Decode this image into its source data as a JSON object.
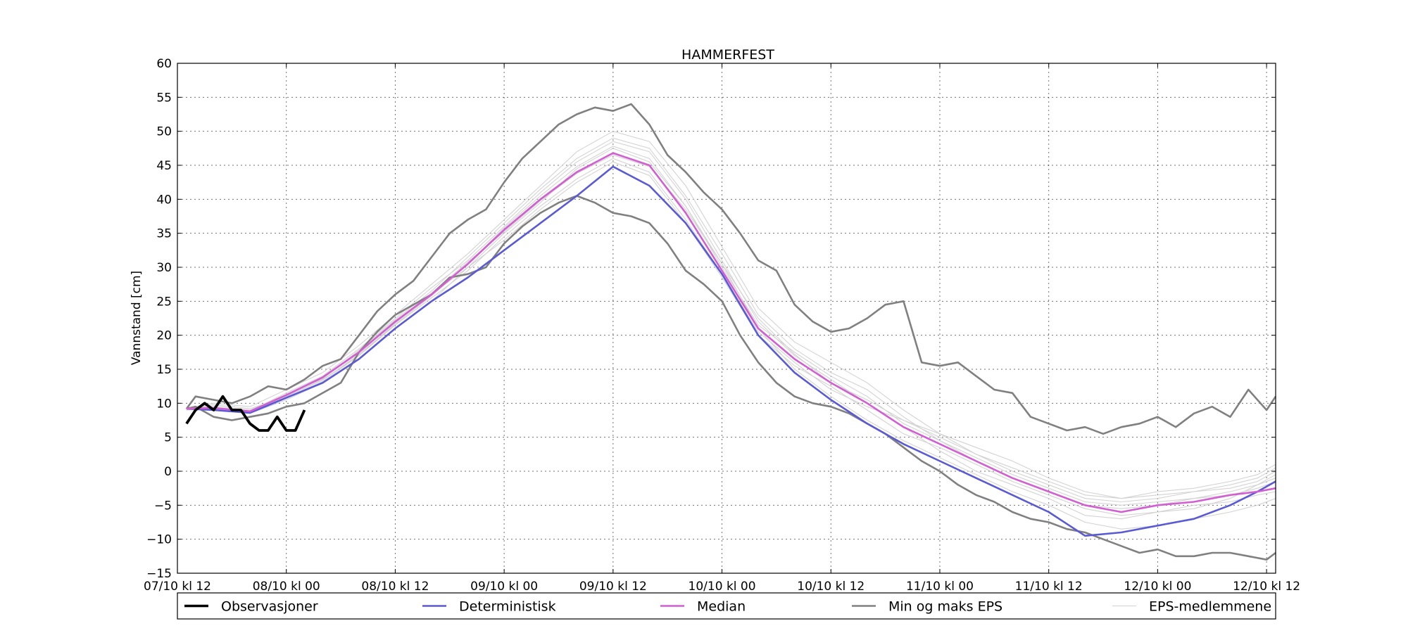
{
  "chart_data": {
    "type": "line",
    "title": "HAMMERFEST",
    "xlabel": "",
    "ylabel": "Vannstand [cm]",
    "xlim_hours": [
      0,
      121
    ],
    "ylim": [
      -15,
      60
    ],
    "grid": true,
    "legend_placement": "bottom",
    "yticks": [
      -15,
      -10,
      -5,
      0,
      5,
      10,
      15,
      20,
      25,
      30,
      35,
      40,
      45,
      50,
      55,
      60
    ],
    "ytick_labels": [
      "−15",
      "−10",
      "−5",
      "0",
      "5",
      "10",
      "15",
      "20",
      "25",
      "30",
      "35",
      "40",
      "45",
      "50",
      "55",
      "60"
    ],
    "xticks_hours": [
      0,
      12,
      24,
      36,
      48,
      60,
      72,
      84,
      96,
      108,
      120
    ],
    "xtick_labels": [
      "07/10 kl 12",
      "08/10 kl 00",
      "08/10 kl 12",
      "09/10 kl 00",
      "09/10 kl 12",
      "10/10 kl 00",
      "10/10 kl 12",
      "11/10 kl 00",
      "11/10 kl 12",
      "12/10 kl 00",
      "12/10 kl 12"
    ],
    "series": [
      {
        "name": "Observasjoner",
        "color": "#000000",
        "x_hours": [
          1,
          2,
          3,
          4,
          5,
          6,
          7,
          8,
          9,
          10,
          11,
          12,
          13,
          14
        ],
        "values": [
          7,
          9,
          10,
          9,
          11,
          9,
          9,
          7,
          6,
          6,
          8,
          6,
          6,
          9
        ]
      },
      {
        "name": "Deterministisk",
        "color": "#5a5ad4",
        "x_hours": [
          1,
          4,
          8,
          12,
          16,
          20,
          24,
          28,
          32,
          36,
          40,
          44,
          48,
          52,
          56,
          60,
          64,
          68,
          72,
          76,
          80,
          84,
          88,
          92,
          96,
          100,
          104,
          108,
          112,
          116,
          119,
          121
        ],
        "values": [
          9.2,
          9.0,
          8.6,
          10.8,
          13.0,
          16.5,
          21.0,
          25.0,
          28.5,
          32.5,
          36.5,
          40.5,
          44.8,
          42.0,
          36.5,
          29.0,
          20.0,
          14.5,
          10.5,
          7.0,
          4.0,
          1.5,
          -1.0,
          -3.5,
          -6.0,
          -9.5,
          -9.0,
          -8.0,
          -7.0,
          -5.0,
          -3.0,
          -1.5
        ]
      },
      {
        "name": "Median",
        "color": "#d25fd2",
        "x_hours": [
          1,
          4,
          8,
          12,
          16,
          20,
          24,
          28,
          32,
          36,
          40,
          44,
          48,
          52,
          56,
          60,
          64,
          68,
          72,
          76,
          80,
          84,
          88,
          92,
          96,
          100,
          104,
          108,
          112,
          116,
          119,
          121
        ],
        "values": [
          9.2,
          9.3,
          8.8,
          11.2,
          13.8,
          17.5,
          22.0,
          26.0,
          30.5,
          35.5,
          40.0,
          44.0,
          46.8,
          45.0,
          38.0,
          29.5,
          21.0,
          16.5,
          13.0,
          10.0,
          6.5,
          4.0,
          1.5,
          -1.0,
          -3.0,
          -5.0,
          -6.0,
          -5.0,
          -4.5,
          -3.5,
          -3.0,
          -2.5
        ]
      },
      {
        "name": "Min og maks EPS",
        "color": "#808080",
        "x_hours": [
          1,
          2,
          4,
          6,
          8,
          10,
          12,
          14,
          16,
          18,
          20,
          22,
          24,
          26,
          28,
          30,
          32,
          34,
          36,
          38,
          40,
          42,
          44,
          46,
          48,
          50,
          52,
          54,
          56,
          58,
          60,
          62,
          64,
          66,
          68,
          70,
          72,
          74,
          76,
          78,
          80,
          82,
          84,
          86,
          88,
          90,
          92,
          94,
          96,
          98,
          100,
          102,
          104,
          106,
          108,
          110,
          112,
          114,
          116,
          118,
          120,
          121
        ],
        "values": [
          9.2,
          11.0,
          10.5,
          10.0,
          11.0,
          12.5,
          12.0,
          13.5,
          15.5,
          16.5,
          20.0,
          23.5,
          26.0,
          28.0,
          31.5,
          35.0,
          37.0,
          38.5,
          42.5,
          46.0,
          48.5,
          51.0,
          52.5,
          53.5,
          53.0,
          54.0,
          51.0,
          46.5,
          44.0,
          41.0,
          38.5,
          35.0,
          31.0,
          29.5,
          24.5,
          22.0,
          20.5,
          21.0,
          22.5,
          24.5,
          25.0,
          16.0,
          15.5,
          16.0,
          14.0,
          12.0,
          11.5,
          8.0,
          7.0,
          6.0,
          6.5,
          5.5,
          6.5,
          7.0,
          8.0,
          6.5,
          8.5,
          9.5,
          8.0,
          12.0,
          9.0,
          11.0
        ]
      },
      {
        "name": "Min og maks EPS",
        "color": "#808080",
        "x_hours": [
          1,
          2,
          4,
          6,
          8,
          10,
          12,
          14,
          16,
          18,
          20,
          22,
          24,
          26,
          28,
          30,
          32,
          34,
          36,
          38,
          40,
          42,
          44,
          46,
          48,
          50,
          52,
          54,
          56,
          58,
          60,
          62,
          64,
          66,
          68,
          70,
          72,
          74,
          76,
          78,
          80,
          82,
          84,
          86,
          88,
          90,
          92,
          94,
          96,
          98,
          100,
          102,
          104,
          106,
          108,
          110,
          112,
          114,
          116,
          118,
          120,
          121
        ],
        "values": [
          9.2,
          9.5,
          8.0,
          7.5,
          8.0,
          8.5,
          9.5,
          10.0,
          11.5,
          13.0,
          17.5,
          20.5,
          23.0,
          24.5,
          26.0,
          28.5,
          29.0,
          30.0,
          33.5,
          36.0,
          38.0,
          39.5,
          40.5,
          39.5,
          38.0,
          37.5,
          36.5,
          33.5,
          29.5,
          27.5,
          25.0,
          20.0,
          16.0,
          13.0,
          11.0,
          10.0,
          9.5,
          8.5,
          7.0,
          5.5,
          3.5,
          1.5,
          0.0,
          -2.0,
          -3.5,
          -4.5,
          -6.0,
          -7.0,
          -7.5,
          -8.5,
          -9.0,
          -10.0,
          -11.0,
          -12.0,
          -11.5,
          -12.5,
          -12.5,
          -12.0,
          -12.0,
          -12.5,
          -13.0,
          -12.0
        ]
      },
      {
        "name": "EPS-medlemmene",
        "color": "#d3d3d3",
        "note_free": true,
        "members": [
          [
            9.0,
            9.4,
            8.9,
            11.5,
            14.0,
            18.0,
            22.5,
            27.0,
            31.0,
            36.0,
            41.0,
            45.5,
            48.5,
            47.0,
            40.0,
            31.0,
            22.0,
            17.0,
            13.5,
            10.0,
            6.5,
            3.0,
            0.0,
            -2.0,
            -4.0,
            -6.5,
            -7.0,
            -6.0,
            -5.5,
            -4.0,
            -2.0,
            -1.0
          ],
          [
            9.2,
            9.8,
            9.2,
            11.0,
            13.5,
            17.0,
            21.5,
            25.5,
            29.5,
            34.5,
            39.0,
            43.0,
            46.0,
            44.0,
            37.0,
            29.0,
            20.5,
            16.0,
            12.0,
            9.5,
            7.5,
            5.5,
            3.5,
            1.5,
            -1.0,
            -3.0,
            -4.0,
            -3.5,
            -3.0,
            -2.0,
            -1.0,
            0.5
          ],
          [
            9.1,
            9.0,
            8.5,
            10.5,
            13.0,
            16.5,
            21.0,
            25.0,
            30.0,
            35.0,
            39.5,
            44.5,
            47.5,
            45.5,
            39.0,
            30.5,
            21.0,
            15.0,
            11.0,
            7.5,
            4.5,
            2.0,
            -0.5,
            -3.0,
            -5.0,
            -7.5,
            -8.5,
            -8.0,
            -7.0,
            -6.0,
            -5.0,
            -4.0
          ],
          [
            9.3,
            10.0,
            9.5,
            12.0,
            14.5,
            18.5,
            23.0,
            27.5,
            32.0,
            37.0,
            42.0,
            47.0,
            50.0,
            48.5,
            42.0,
            33.0,
            24.0,
            19.0,
            16.0,
            13.0,
            9.0,
            5.5,
            2.5,
            0.0,
            -2.0,
            -4.0,
            -4.5,
            -4.0,
            -3.0,
            -2.5,
            -1.5,
            0.0
          ],
          [
            9.0,
            9.2,
            8.7,
            10.8,
            13.2,
            17.0,
            21.8,
            26.0,
            30.0,
            34.0,
            38.5,
            42.5,
            45.5,
            43.5,
            36.5,
            28.5,
            20.0,
            15.5,
            12.5,
            9.0,
            5.5,
            3.5,
            1.0,
            -1.5,
            -3.5,
            -5.5,
            -6.5,
            -6.0,
            -5.0,
            -4.5,
            -3.5,
            -3.0
          ],
          [
            9.2,
            9.6,
            9.0,
            11.3,
            13.6,
            17.8,
            22.3,
            26.5,
            31.5,
            36.5,
            41.5,
            46.0,
            49.0,
            47.5,
            40.5,
            32.0,
            23.0,
            18.0,
            14.5,
            12.0,
            8.0,
            4.5,
            2.0,
            -0.5,
            -2.5,
            -4.5,
            -5.0,
            -4.5,
            -4.0,
            -3.0,
            -2.0,
            -0.5
          ],
          [
            9.1,
            9.1,
            8.6,
            11.0,
            13.4,
            17.2,
            21.6,
            25.8,
            30.5,
            35.8,
            40.5,
            44.8,
            47.8,
            46.0,
            39.0,
            30.0,
            21.5,
            17.5,
            14.0,
            11.0,
            7.0,
            4.5,
            1.5,
            -1.0,
            -3.0,
            -5.0,
            -5.5,
            -5.0,
            -4.0,
            -3.5,
            -2.5,
            -1.5
          ],
          [
            9.2,
            9.4,
            8.8,
            11.1,
            13.9,
            17.6,
            22.1,
            26.2,
            30.8,
            35.2,
            39.8,
            43.8,
            46.5,
            44.8,
            38.5,
            30.5,
            22.5,
            17.2,
            13.0,
            10.5,
            7.5,
            5.0,
            2.5,
            0.5,
            -1.5,
            -3.5,
            -4.0,
            -3.0,
            -2.5,
            -1.5,
            -0.5,
            1.0
          ]
        ],
        "members_x_hours": [
          1,
          4,
          8,
          12,
          16,
          20,
          24,
          28,
          32,
          36,
          40,
          44,
          48,
          52,
          56,
          60,
          64,
          68,
          72,
          76,
          80,
          84,
          88,
          92,
          96,
          100,
          104,
          108,
          112,
          116,
          119,
          121
        ]
      }
    ],
    "legend": [
      {
        "label": "Observasjoner",
        "color": "#000000",
        "width": 3.5
      },
      {
        "label": "Deterministisk",
        "color": "#5a5ad4",
        "width": 2.5
      },
      {
        "label": "Median",
        "color": "#d25fd2",
        "width": 2.5
      },
      {
        "label": "Min og maks EPS",
        "color": "#808080",
        "width": 2.5
      },
      {
        "label": "EPS-medlemmene",
        "color": "#d3d3d3",
        "width": 1
      }
    ]
  }
}
